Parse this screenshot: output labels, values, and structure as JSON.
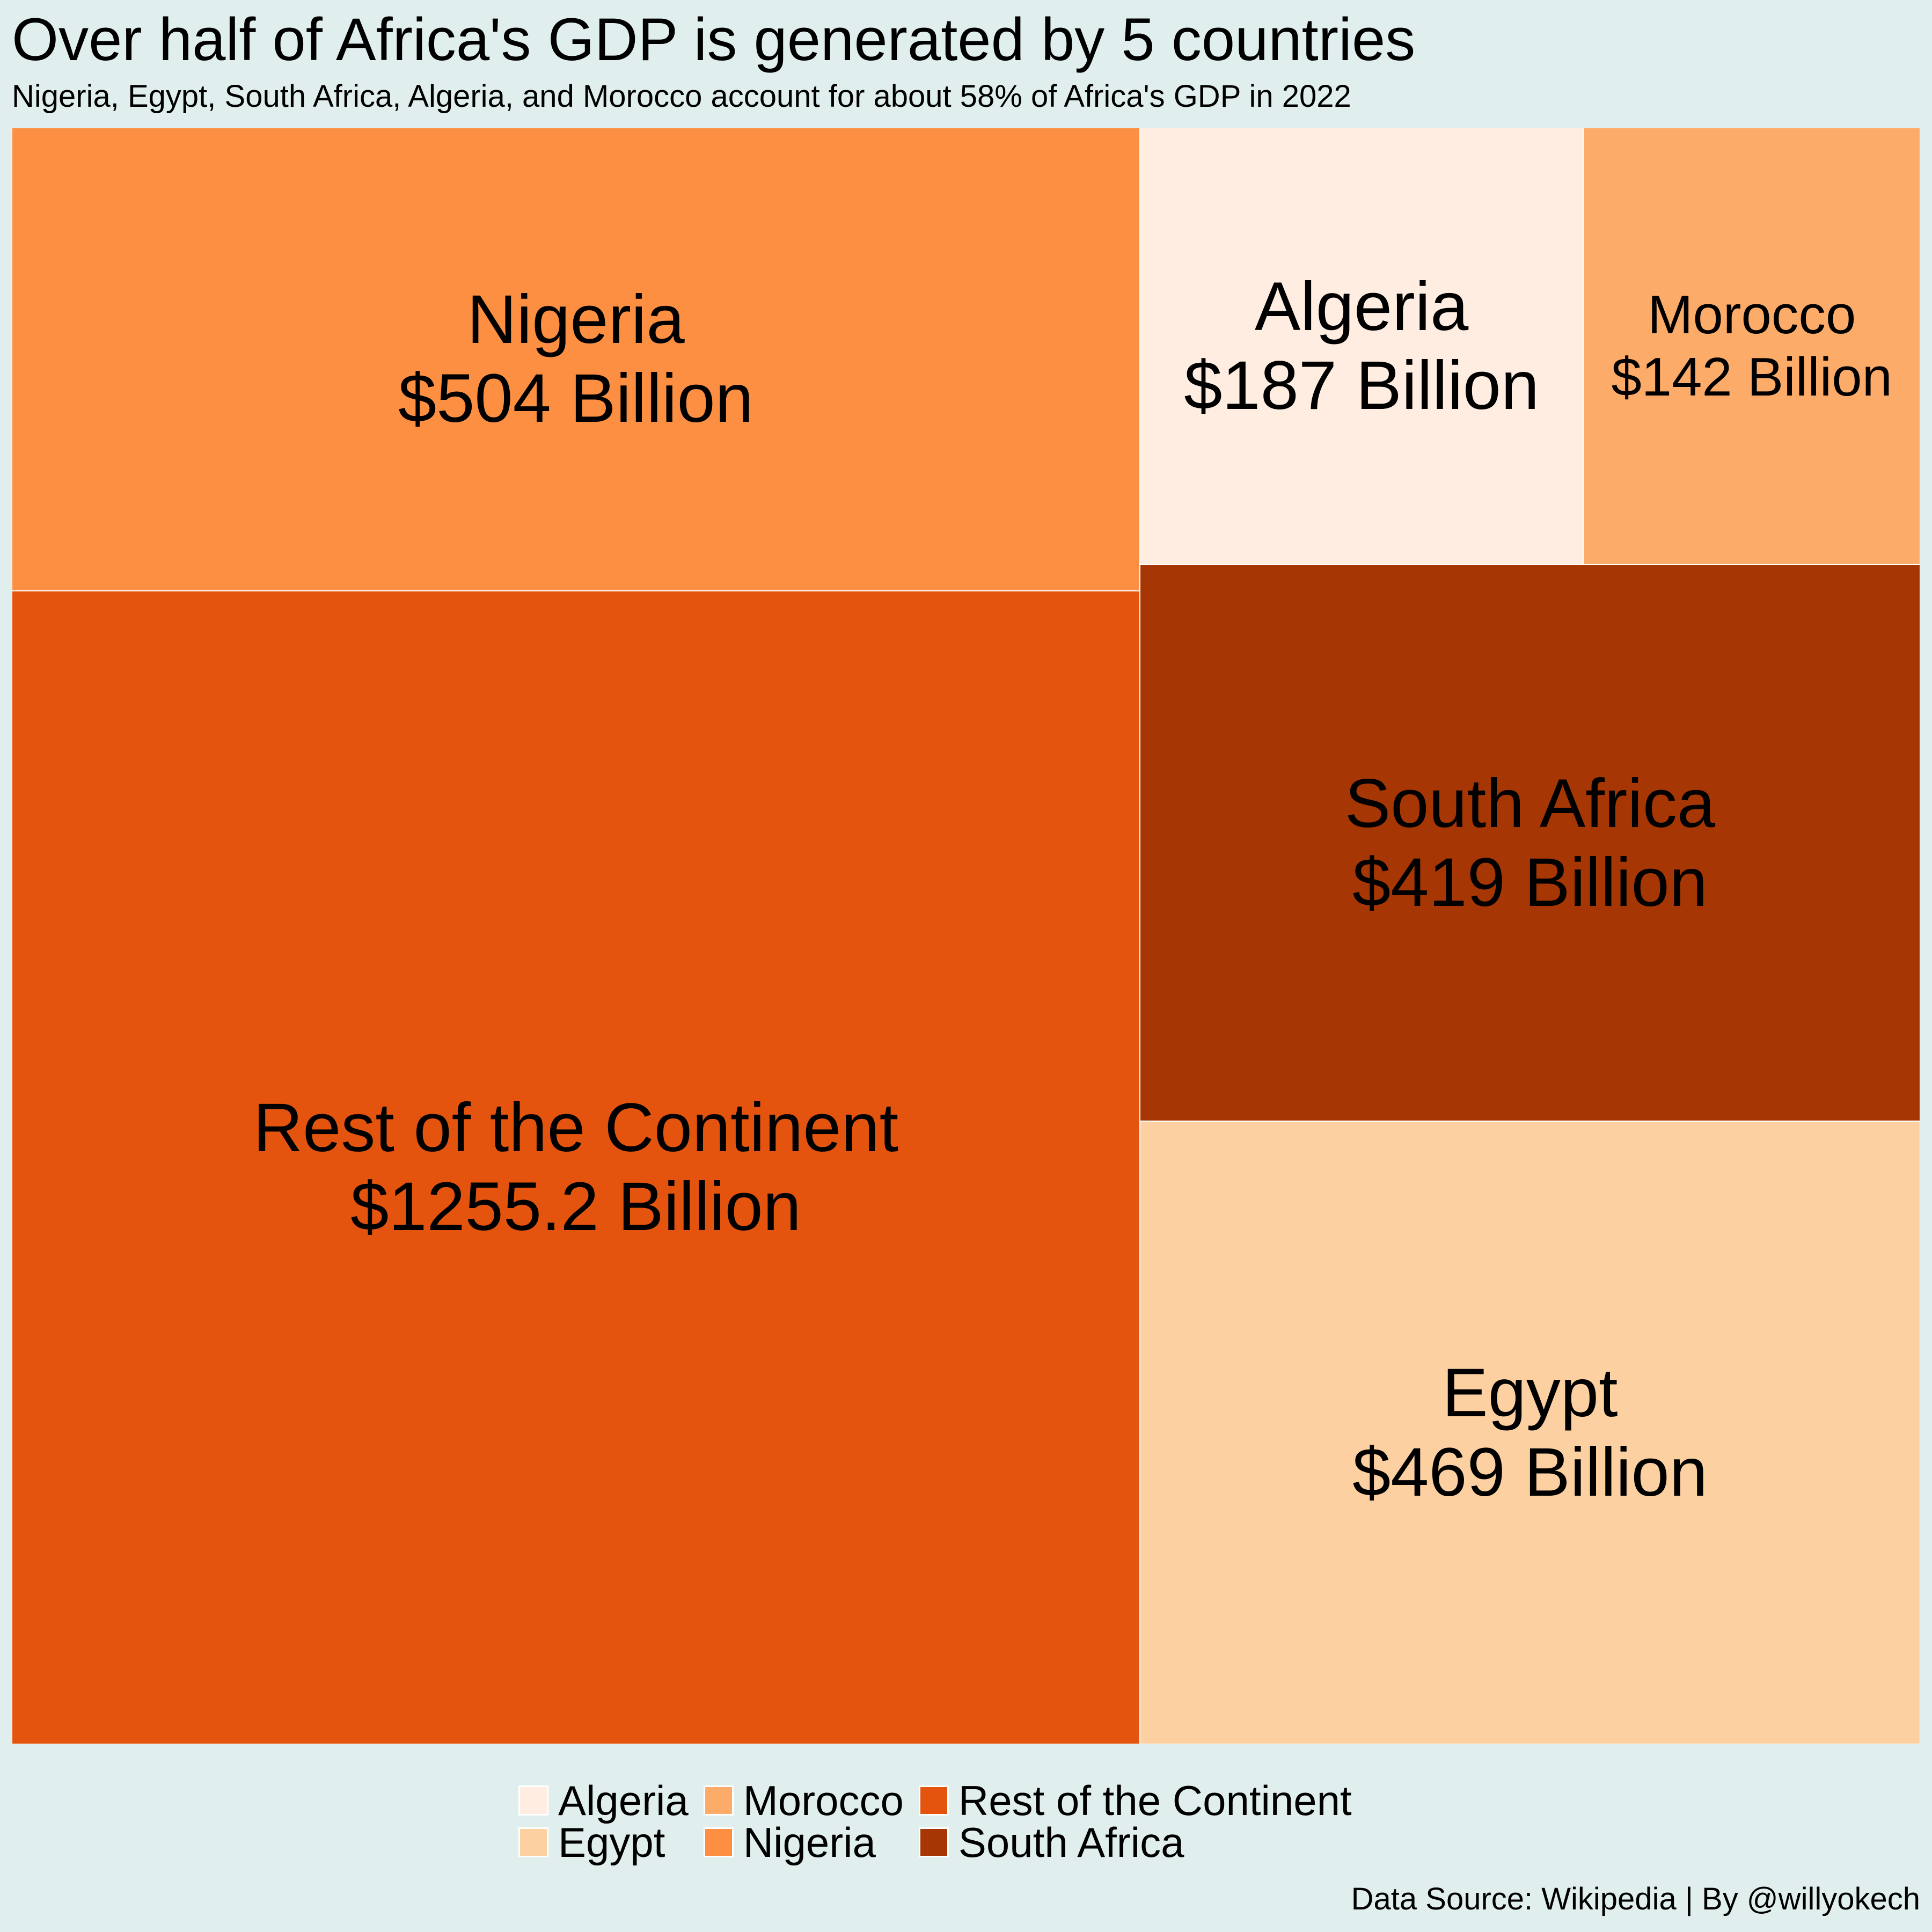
{
  "chart_data": {
    "type": "treemap",
    "title": "Over half of Africa's GDP is generated by 5 countries",
    "subtitle": "Nigeria, Egypt, South Africa, Algeria, and Morocco account for about 58% of Africa's GDP in 2022",
    "caption": "Data Source: Wikipedia | By @willyokech",
    "value_unit": "Billion USD",
    "series": [
      {
        "name": "Rest of the Continent",
        "value": 1255.2,
        "label": "Rest of the Continent",
        "value_label": "$1255.2 Billion",
        "color": "#e4540e"
      },
      {
        "name": "Nigeria",
        "value": 504,
        "label": "Nigeria",
        "value_label": "$504 Billion",
        "color": "#fd8f42"
      },
      {
        "name": "Egypt",
        "value": 469,
        "label": "Egypt",
        "value_label": "$469 Billion",
        "color": "#fdd0a2"
      },
      {
        "name": "South Africa",
        "value": 419,
        "label": "South Africa",
        "value_label": "$419 Billion",
        "color": "#a63603"
      },
      {
        "name": "Algeria",
        "value": 187,
        "label": "Algeria",
        "value_label": "$187 Billion",
        "color": "#feede0"
      },
      {
        "name": "Morocco",
        "value": 142,
        "label": "Morocco",
        "value_label": "$142 Billion",
        "color": "#fdab69"
      }
    ],
    "legend": {
      "placement": "bottom",
      "entries": [
        {
          "label": "Algeria",
          "color": "#feede0"
        },
        {
          "label": "Egypt",
          "color": "#fdd0a2"
        },
        {
          "label": "Morocco",
          "color": "#fdab69"
        },
        {
          "label": "Nigeria",
          "color": "#fd8f42"
        },
        {
          "label": "Rest of the Continent",
          "color": "#e4540e"
        },
        {
          "label": "South Africa",
          "color": "#a63603"
        }
      ]
    }
  }
}
